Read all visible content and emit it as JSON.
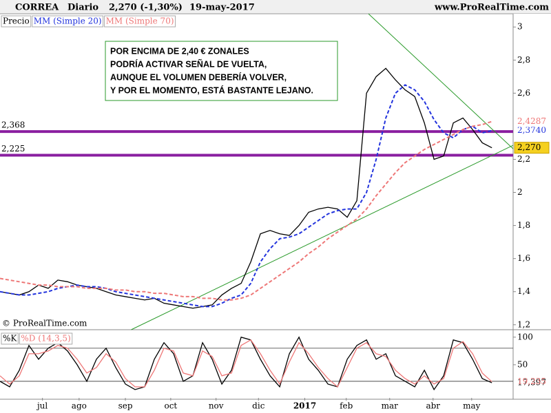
{
  "header": {
    "symbol": "CORREA",
    "period": "Diario",
    "last": "2,270 (-1,30%)",
    "date": "19-may-2017",
    "site": "www.ProRealTime.com"
  },
  "chart_data": [
    {
      "type": "line",
      "x": [
        0,
        1,
        2,
        3,
        4,
        5,
        6,
        7,
        8,
        9,
        10,
        11,
        12,
        13,
        14,
        15,
        16,
        17,
        18,
        19,
        20,
        21,
        22,
        23,
        24,
        25,
        26,
        27,
        28,
        29,
        30,
        31,
        32,
        33,
        34,
        35,
        36,
        37,
        38,
        39,
        40,
        41,
        42,
        43,
        44,
        45,
        46,
        47,
        48,
        49,
        50,
        51
      ],
      "xlim": [
        0,
        53.2
      ],
      "ylim": [
        1.17,
        3.08
      ],
      "yticks": [
        {
          "value": 3,
          "label": "3"
        },
        {
          "value": 2.8,
          "label": "2,8"
        },
        {
          "value": 2.6,
          "label": "2,6"
        },
        {
          "value": 2.2,
          "label": "2,2"
        },
        {
          "value": 2,
          "label": "2"
        },
        {
          "value": 1.8,
          "label": "1,8"
        },
        {
          "value": 1.6,
          "label": "1,6"
        },
        {
          "value": 1.4,
          "label": "1,4"
        },
        {
          "value": 1.2,
          "label": "1,2"
        }
      ],
      "series": [
        {
          "name": "Precio",
          "color": "#000000",
          "dashed": false,
          "last_label": "2,270",
          "label_bg": "#f5d020",
          "values": [
            1.4,
            1.39,
            1.38,
            1.4,
            1.44,
            1.42,
            1.47,
            1.46,
            1.44,
            1.43,
            1.42,
            1.4,
            1.38,
            1.37,
            1.36,
            1.35,
            1.36,
            1.33,
            1.32,
            1.31,
            1.3,
            1.31,
            1.32,
            1.38,
            1.42,
            1.45,
            1.58,
            1.75,
            1.77,
            1.75,
            1.74,
            1.8,
            1.88,
            1.9,
            1.91,
            1.9,
            1.85,
            1.95,
            2.6,
            2.7,
            2.75,
            2.68,
            2.62,
            2.58,
            2.42,
            2.2,
            2.22,
            2.42,
            2.45,
            2.38,
            2.3,
            2.27
          ]
        },
        {
          "name": "MM (Simple 20)",
          "color": "#2233dd",
          "dashed": true,
          "last_label": "2,3740",
          "label_bg": "#ffffff",
          "values": [
            1.4,
            1.39,
            1.38,
            1.38,
            1.39,
            1.4,
            1.42,
            1.43,
            1.44,
            1.43,
            1.43,
            1.42,
            1.4,
            1.39,
            1.38,
            1.37,
            1.36,
            1.35,
            1.34,
            1.33,
            1.32,
            1.31,
            1.31,
            1.33,
            1.36,
            1.38,
            1.45,
            1.58,
            1.66,
            1.72,
            1.73,
            1.75,
            1.79,
            1.83,
            1.87,
            1.89,
            1.9,
            1.9,
            2.0,
            2.2,
            2.45,
            2.6,
            2.65,
            2.62,
            2.55,
            2.44,
            2.36,
            2.33,
            2.38,
            2.4,
            2.36,
            2.374
          ]
        },
        {
          "name": "MM (Simple 70)",
          "color": "#ee7777",
          "dashed": true,
          "last_label": "2,4287",
          "label_bg": "#ffffff",
          "values": [
            1.48,
            1.47,
            1.46,
            1.45,
            1.44,
            1.44,
            1.43,
            1.43,
            1.43,
            1.42,
            1.42,
            1.42,
            1.41,
            1.41,
            1.4,
            1.4,
            1.39,
            1.39,
            1.38,
            1.37,
            1.37,
            1.36,
            1.36,
            1.35,
            1.35,
            1.36,
            1.38,
            1.42,
            1.46,
            1.5,
            1.54,
            1.58,
            1.63,
            1.67,
            1.72,
            1.76,
            1.8,
            1.84,
            1.9,
            1.98,
            2.05,
            2.12,
            2.18,
            2.22,
            2.26,
            2.29,
            2.32,
            2.35,
            2.38,
            2.4,
            2.41,
            2.4287
          ]
        }
      ],
      "levels": [
        {
          "value": 2.368,
          "label": "2,368"
        },
        {
          "value": 2.225,
          "label": "2,225"
        }
      ],
      "level_color": "#8a1fa0",
      "trendlines": [
        {
          "x": [
            13.6,
            53.2
          ],
          "y": [
            1.17,
            2.285
          ]
        },
        {
          "x": [
            38.2,
            53.2
          ],
          "y": [
            3.08,
            2.264
          ]
        }
      ],
      "trend_color": "#2a9a2a",
      "annotation": [
        "POR ENCIMA DE 2,40 € ZONALES",
        "PODRÍA ACTIVAR SEÑAL DE VUELTA,",
        "AUNQUE EL VOLUMEN DEBERÍA VOLVER,",
        "Y POR EL MOMENTO, ESTÁ BASTANTE LEJANO."
      ],
      "watermark": "© ProRealTime.com"
    },
    {
      "type": "line",
      "xlim": [
        0,
        53.2
      ],
      "xticks": [
        {
          "value": 4.4,
          "label": "jul"
        },
        {
          "value": 8.2,
          "label": "ago"
        },
        {
          "value": 13,
          "label": "sep"
        },
        {
          "value": 17.7,
          "label": "oct"
        },
        {
          "value": 22.4,
          "label": "nov"
        },
        {
          "value": 26.8,
          "label": "dic"
        },
        {
          "value": 31.6,
          "label": "2017"
        },
        {
          "value": 35.9,
          "label": "feb"
        },
        {
          "value": 40.4,
          "label": "mar"
        },
        {
          "value": 44.9,
          "label": "abr"
        },
        {
          "value": 48.9,
          "label": "may"
        }
      ],
      "ylim": [
        -10,
        111
      ],
      "yticks": [
        100,
        50
      ],
      "levels": [
        80,
        20
      ],
      "series": [
        {
          "name": "%K",
          "color": "#000000",
          "last_label": "17,397",
          "values": [
            20,
            10,
            40,
            85,
            60,
            80,
            90,
            75,
            50,
            20,
            60,
            80,
            45,
            15,
            5,
            10,
            60,
            90,
            70,
            20,
            30,
            90,
            60,
            15,
            40,
            100,
            95,
            60,
            30,
            10,
            70,
            100,
            60,
            40,
            15,
            10,
            60,
            85,
            95,
            60,
            70,
            30,
            20,
            10,
            40,
            5,
            30,
            95,
            90,
            60,
            25,
            17.397
          ]
        },
        {
          "name": "%D (14,3,5)",
          "color": "#ee7777",
          "last_label": "19,235",
          "values": [
            30,
            15,
            30,
            70,
            70,
            75,
            85,
            80,
            60,
            35,
            45,
            70,
            55,
            25,
            10,
            10,
            40,
            80,
            75,
            35,
            30,
            75,
            65,
            30,
            35,
            85,
            95,
            70,
            40,
            15,
            55,
            90,
            70,
            45,
            25,
            10,
            45,
            80,
            90,
            70,
            65,
            40,
            25,
            15,
            30,
            15,
            25,
            80,
            92,
            70,
            35,
            19.235
          ]
        }
      ]
    }
  ]
}
